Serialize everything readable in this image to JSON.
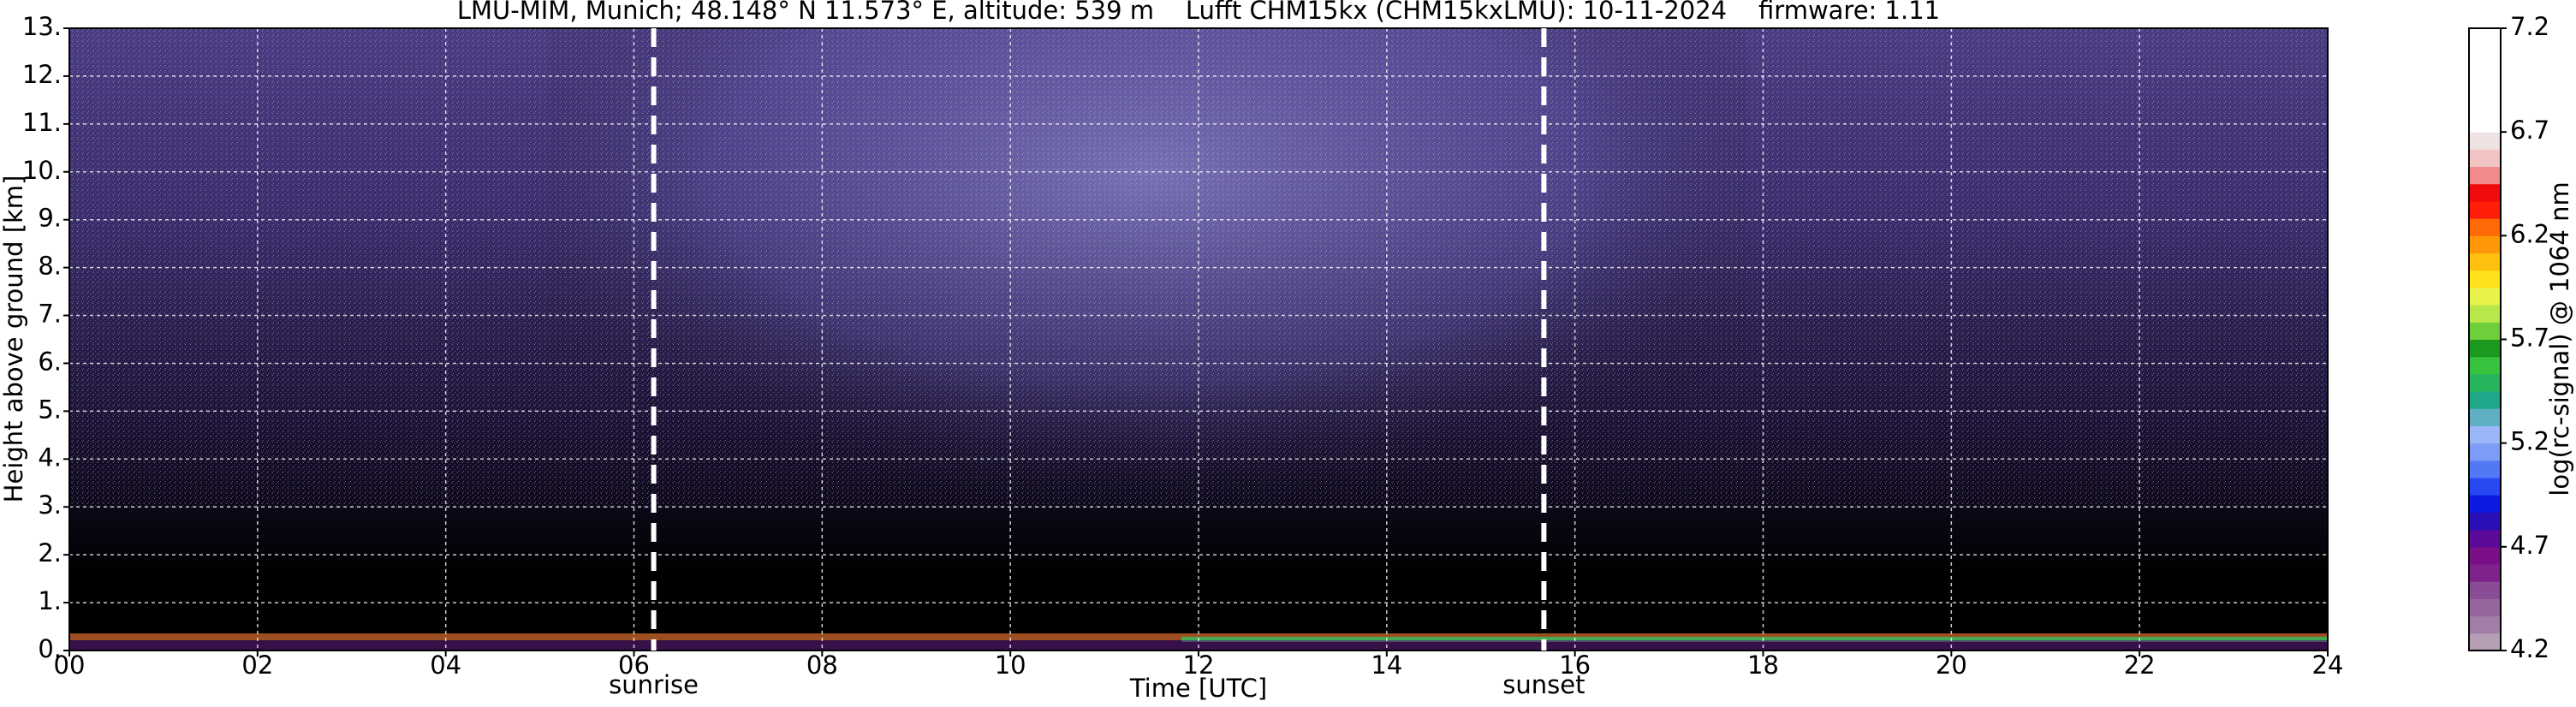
{
  "chart_data": {
    "type": "heatmap",
    "title": "LMU-MIM, Munich; 48.148° N 11.573° E, altitude: 539 m    Lufft CHM15kx (CHM15kxLMU): 10-11-2024    firmware: 1.11",
    "x_label": "Time [UTC]",
    "y_label": "Height above ground [km]",
    "xlim": [
      0,
      24
    ],
    "xticks": [
      {
        "value": 0,
        "label": "00"
      },
      {
        "value": 2,
        "label": "02"
      },
      {
        "value": 4,
        "label": "04"
      },
      {
        "value": 6,
        "label": "06"
      },
      {
        "value": 8,
        "label": "08"
      },
      10,
      12,
      14,
      16,
      18,
      20,
      22,
      24
    ],
    "ylim": [
      0,
      13
    ],
    "yticks": [
      {
        "value": 0,
        "label": "0."
      },
      {
        "value": 1,
        "label": "1."
      },
      {
        "value": 2,
        "label": "2."
      },
      {
        "value": 3,
        "label": "3."
      },
      {
        "value": 4,
        "label": "4."
      },
      {
        "value": 5,
        "label": "5."
      },
      {
        "value": 6,
        "label": "6."
      },
      {
        "value": 7,
        "label": "7."
      },
      {
        "value": 8,
        "label": "8."
      },
      {
        "value": 9,
        "label": "9."
      },
      {
        "value": 10,
        "label": "10."
      },
      {
        "value": 11,
        "label": "11."
      },
      {
        "value": 12,
        "label": "12."
      },
      {
        "value": 13,
        "label": "13."
      }
    ],
    "grid": true,
    "annotations": [
      {
        "text": "sunrise",
        "x": 6.21
      },
      {
        "text": "sunset",
        "x": 15.67
      }
    ],
    "colorbar": {
      "label": "log(rc-signal) @ 1064 nm",
      "lim": [
        4.2,
        7.2
      ],
      "ticks": [
        4.2,
        4.7,
        5.2,
        5.7,
        6.2,
        6.7,
        7.2
      ],
      "colors": [
        "#b59fb5",
        "#a07ea6",
        "#95659d",
        "#8a4c94",
        "#80228c",
        "#7a0f88",
        "#5c0a9a",
        "#2a10b4",
        "#0d1ae0",
        "#2848f2",
        "#5278f5",
        "#7d9cf7",
        "#9cb7f9",
        "#5fb0c4",
        "#21a88a",
        "#27b45c",
        "#36c23c",
        "#1c9a20",
        "#6ecf3a",
        "#b9e84a",
        "#e7f24a",
        "#ffe21c",
        "#ffc010",
        "#ff9808",
        "#ff6a06",
        "#ff1e0a",
        "#f00c0c",
        "#f28a8a",
        "#f2c4c4",
        "#efe2e2",
        "#ffffff",
        "#ffffff",
        "#ffffff",
        "#ffffff",
        "#ffffff",
        "#ffffff"
      ]
    }
  }
}
